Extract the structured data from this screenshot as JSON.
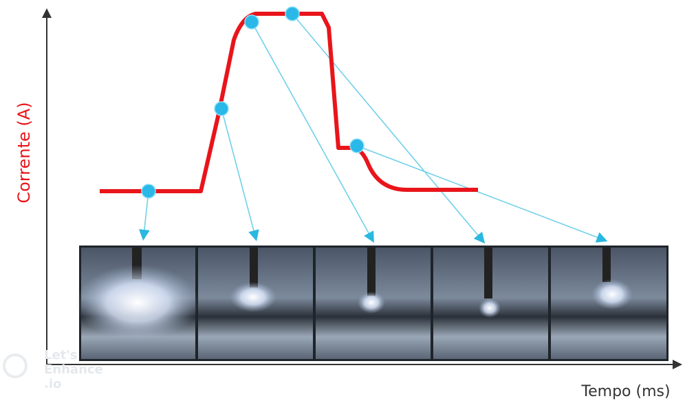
{
  "axes": {
    "y_label": "Corrente (A)",
    "x_label": "Tempo (ms)"
  },
  "watermark": [
    "Let's",
    "Enhance",
    ".io"
  ]
}
